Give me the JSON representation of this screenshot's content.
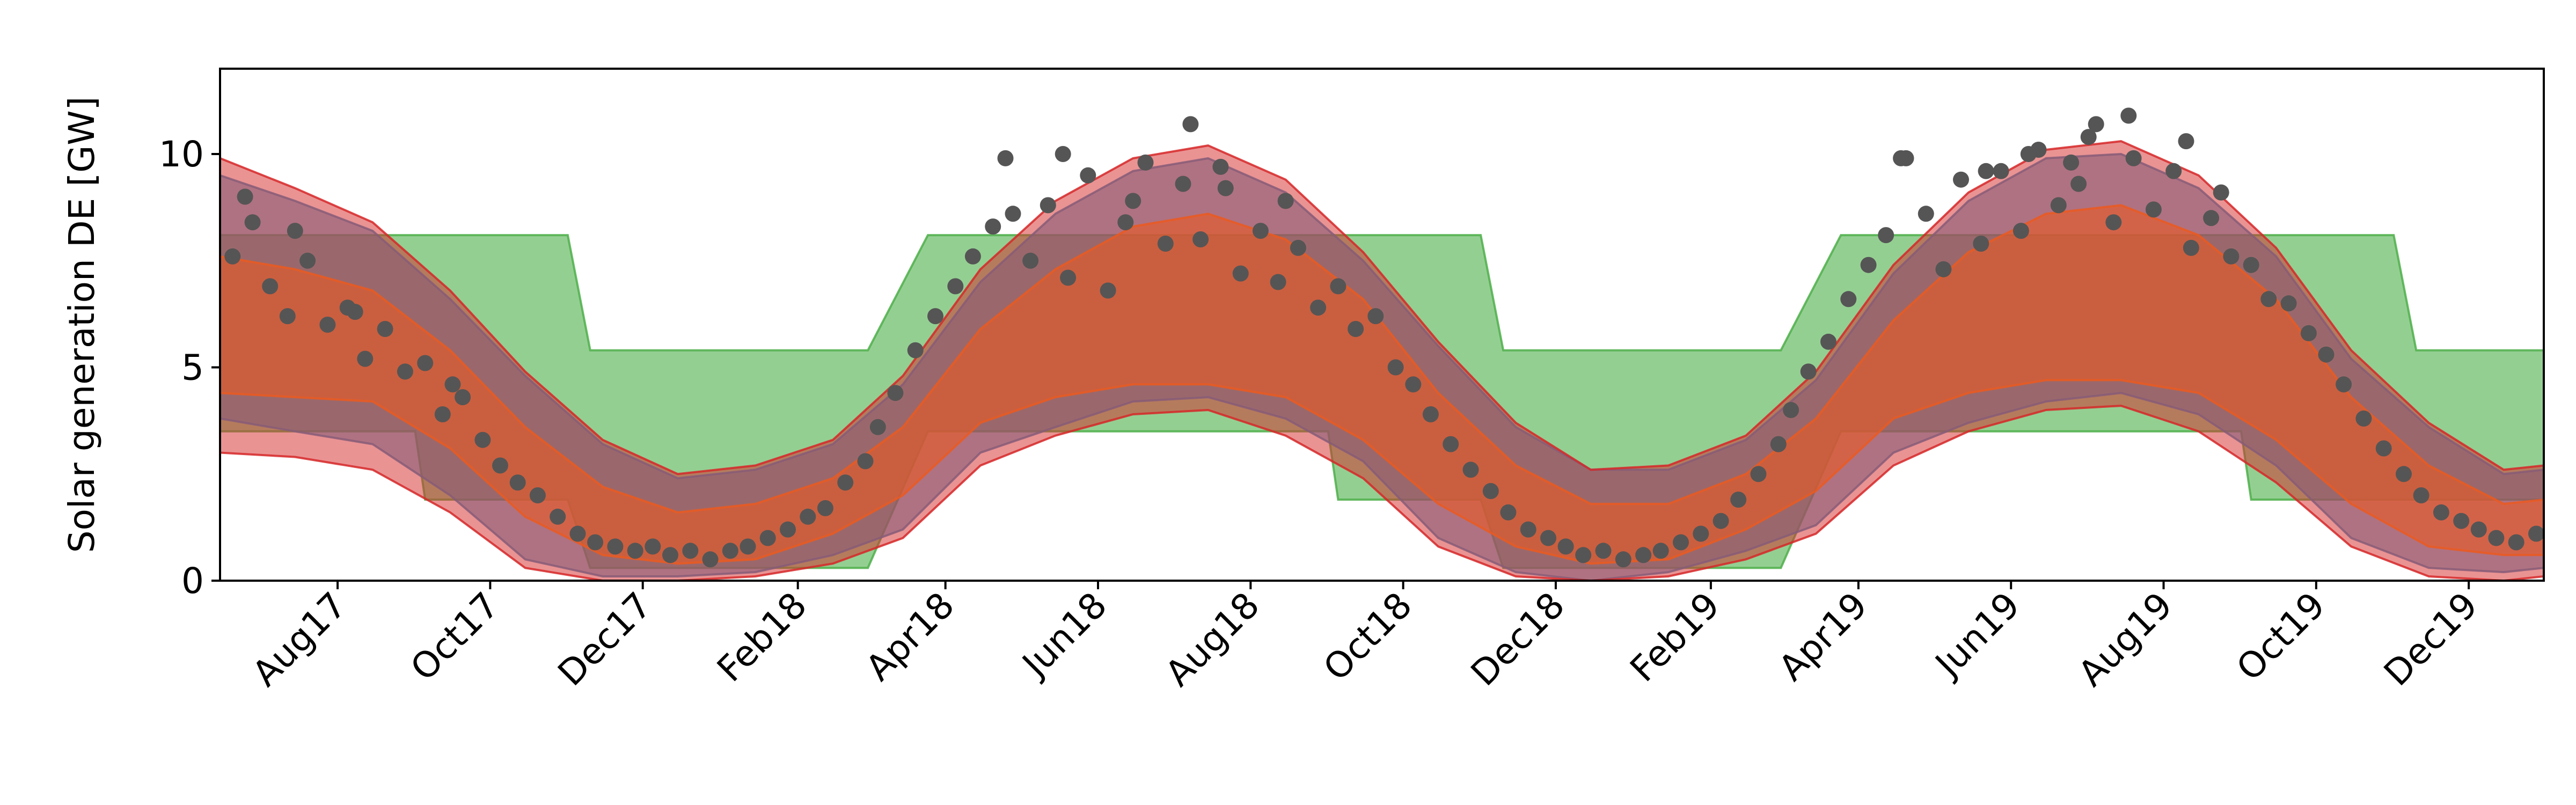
{
  "chart_data": {
    "type": "area",
    "title": "",
    "xlabel": "",
    "ylabel": "Solar generation DE [GW]",
    "xlim": [
      "2017-06-15",
      "2019-12-31"
    ],
    "ylim": [
      0,
      12
    ],
    "yticks": [
      0,
      5,
      10
    ],
    "xtick_labels": [
      {
        "label": "Aug17",
        "date": "2017-08-01"
      },
      {
        "label": "Oct17",
        "date": "2017-10-01"
      },
      {
        "label": "Dec17",
        "date": "2017-12-01"
      },
      {
        "label": "Feb18",
        "date": "2018-02-01"
      },
      {
        "label": "Apr18",
        "date": "2018-04-01"
      },
      {
        "label": "Jun18",
        "date": "2018-06-01"
      },
      {
        "label": "Aug18",
        "date": "2018-08-01"
      },
      {
        "label": "Oct18",
        "date": "2018-10-01"
      },
      {
        "label": "Dec18",
        "date": "2018-12-01"
      },
      {
        "label": "Feb19",
        "date": "2019-02-01"
      },
      {
        "label": "Apr19",
        "date": "2019-04-01"
      },
      {
        "label": "Jun19",
        "date": "2019-06-01"
      },
      {
        "label": "Aug19",
        "date": "2019-08-01"
      },
      {
        "label": "Oct19",
        "date": "2019-10-01"
      },
      {
        "label": "Dec19",
        "date": "2019-12-01"
      }
    ],
    "grid": false,
    "legend": "none",
    "colors": {
      "green_band": "#4daf4a",
      "blue_band": "#3a8fc7",
      "orange_band": "#ff8c1a",
      "red_band": "#d62728",
      "observed_points": "#555555"
    },
    "series": [
      {
        "kind": "band",
        "color_key": "green_band",
        "x": [
          "2017-06-15",
          "2017-07-01",
          "2017-08-01",
          "2017-09-01",
          "2017-09-05",
          "2017-10-01",
          "2017-10-20",
          "2017-11-01",
          "2017-11-10",
          "2017-12-01",
          "2018-01-01",
          "2018-02-01",
          "2018-03-01",
          "2018-03-25",
          "2018-04-01",
          "2018-05-01",
          "2018-06-01",
          "2018-07-01",
          "2018-08-01",
          "2018-09-01",
          "2018-09-05",
          "2018-10-01",
          "2018-10-20",
          "2018-11-01",
          "2018-11-10",
          "2018-12-01",
          "2019-01-01",
          "2019-02-01",
          "2019-03-01",
          "2019-03-25",
          "2019-04-01",
          "2019-05-01",
          "2019-06-01",
          "2019-07-01",
          "2019-08-01",
          "2019-09-01",
          "2019-09-05",
          "2019-10-01",
          "2019-10-20",
          "2019-11-01",
          "2019-11-10",
          "2019-12-01",
          "2019-12-31"
        ],
        "lower": [
          3.5,
          3.5,
          3.5,
          3.5,
          1.9,
          1.9,
          1.9,
          1.9,
          0.3,
          0.3,
          0.3,
          0.3,
          0.3,
          3.5,
          3.5,
          3.5,
          3.5,
          3.5,
          3.5,
          3.5,
          1.9,
          1.9,
          1.9,
          1.9,
          0.3,
          0.3,
          0.3,
          0.3,
          0.3,
          3.5,
          3.5,
          3.5,
          3.5,
          3.5,
          3.5,
          3.5,
          1.9,
          1.9,
          1.9,
          1.9,
          1.9,
          1.9,
          1.9
        ],
        "upper": [
          8.1,
          8.1,
          8.1,
          8.1,
          8.1,
          8.1,
          8.1,
          8.1,
          5.4,
          5.4,
          5.4,
          5.4,
          5.4,
          8.1,
          8.1,
          8.1,
          8.1,
          8.1,
          8.1,
          8.1,
          8.1,
          8.1,
          8.1,
          8.1,
          5.4,
          5.4,
          5.4,
          5.4,
          5.4,
          8.1,
          8.1,
          8.1,
          8.1,
          8.1,
          8.1,
          8.1,
          8.1,
          8.1,
          8.1,
          8.1,
          5.4,
          5.4,
          5.4
        ]
      },
      {
        "kind": "band",
        "color_key": "blue_band",
        "x": [
          "2017-06-15",
          "2017-07-15",
          "2017-08-15",
          "2017-09-15",
          "2017-10-15",
          "2017-11-15",
          "2017-12-15",
          "2018-01-15",
          "2018-02-15",
          "2018-03-15",
          "2018-04-15",
          "2018-05-15",
          "2018-06-15",
          "2018-07-15",
          "2018-08-15",
          "2018-09-15",
          "2018-10-15",
          "2018-11-15",
          "2018-12-15",
          "2019-01-15",
          "2019-02-15",
          "2019-03-15",
          "2019-04-15",
          "2019-05-15",
          "2019-06-15",
          "2019-07-15",
          "2019-08-15",
          "2019-09-15",
          "2019-10-15",
          "2019-11-15",
          "2019-12-15",
          "2019-12-31"
        ],
        "lower": [
          3.8,
          3.5,
          3.2,
          2.0,
          0.5,
          0.1,
          0.1,
          0.2,
          0.6,
          1.2,
          3.0,
          3.6,
          4.2,
          4.3,
          3.8,
          2.8,
          1.0,
          0.2,
          0.0,
          0.2,
          0.7,
          1.3,
          3.0,
          3.7,
          4.2,
          4.4,
          3.9,
          2.7,
          1.0,
          0.3,
          0.2,
          0.3
        ],
        "upper": [
          9.5,
          8.9,
          8.2,
          6.6,
          4.8,
          3.2,
          2.4,
          2.6,
          3.2,
          4.6,
          7.0,
          8.6,
          9.6,
          9.9,
          9.1,
          7.5,
          5.5,
          3.6,
          2.6,
          2.6,
          3.3,
          4.7,
          7.2,
          8.9,
          9.9,
          10.0,
          9.2,
          7.6,
          5.2,
          3.6,
          2.5,
          2.6
        ]
      },
      {
        "kind": "band",
        "color_key": "orange_band",
        "x": [
          "2017-06-15",
          "2017-07-15",
          "2017-08-15",
          "2017-09-15",
          "2017-10-15",
          "2017-11-15",
          "2017-12-15",
          "2018-01-15",
          "2018-02-15",
          "2018-03-15",
          "2018-04-15",
          "2018-05-15",
          "2018-06-15",
          "2018-07-15",
          "2018-08-15",
          "2018-09-15",
          "2018-10-15",
          "2018-11-15",
          "2018-12-15",
          "2019-01-15",
          "2019-02-15",
          "2019-03-15",
          "2019-04-15",
          "2019-05-15",
          "2019-06-15",
          "2019-07-15",
          "2019-08-15",
          "2019-09-15",
          "2019-10-15",
          "2019-11-15",
          "2019-12-15",
          "2019-12-31"
        ],
        "lower": [
          4.4,
          4.3,
          4.2,
          3.1,
          1.5,
          0.6,
          0.4,
          0.5,
          1.1,
          2.0,
          3.7,
          4.3,
          4.6,
          4.6,
          4.3,
          3.3,
          1.8,
          0.8,
          0.4,
          0.5,
          1.2,
          2.1,
          3.8,
          4.4,
          4.7,
          4.7,
          4.4,
          3.3,
          1.8,
          0.8,
          0.6,
          0.6
        ],
        "upper": [
          7.6,
          7.3,
          6.8,
          5.4,
          3.6,
          2.2,
          1.6,
          1.8,
          2.4,
          3.6,
          5.9,
          7.3,
          8.3,
          8.6,
          8.0,
          6.6,
          4.4,
          2.7,
          1.8,
          1.8,
          2.5,
          3.8,
          6.1,
          7.7,
          8.6,
          8.8,
          8.1,
          6.6,
          4.3,
          2.7,
          1.8,
          1.9
        ]
      },
      {
        "kind": "band",
        "color_key": "red_band",
        "x": [
          "2017-06-15",
          "2017-07-15",
          "2017-08-15",
          "2017-09-15",
          "2017-10-15",
          "2017-11-15",
          "2017-12-15",
          "2018-01-15",
          "2018-02-15",
          "2018-03-15",
          "2018-04-15",
          "2018-05-15",
          "2018-06-15",
          "2018-07-15",
          "2018-08-15",
          "2018-09-15",
          "2018-10-15",
          "2018-11-15",
          "2018-12-15",
          "2019-01-15",
          "2019-02-15",
          "2019-03-15",
          "2019-04-15",
          "2019-05-15",
          "2019-06-15",
          "2019-07-15",
          "2019-08-15",
          "2019-09-15",
          "2019-10-15",
          "2019-11-15",
          "2019-12-15",
          "2019-12-31"
        ],
        "lower": [
          3.0,
          2.9,
          2.6,
          1.6,
          0.3,
          0.0,
          0.0,
          0.1,
          0.4,
          1.0,
          2.7,
          3.4,
          3.9,
          4.0,
          3.4,
          2.4,
          0.8,
          0.1,
          0.0,
          0.1,
          0.5,
          1.1,
          2.7,
          3.5,
          4.0,
          4.1,
          3.5,
          2.3,
          0.8,
          0.1,
          0.0,
          0.1
        ],
        "upper": [
          9.9,
          9.2,
          8.4,
          6.8,
          4.9,
          3.3,
          2.5,
          2.7,
          3.3,
          4.8,
          7.3,
          8.9,
          9.9,
          10.2,
          9.4,
          7.7,
          5.6,
          3.7,
          2.6,
          2.7,
          3.4,
          4.9,
          7.4,
          9.1,
          10.1,
          10.3,
          9.5,
          7.8,
          5.4,
          3.7,
          2.6,
          2.7
        ]
      },
      {
        "kind": "scatter",
        "color_key": "observed_points",
        "x": [
          "2017-06-20",
          "2017-06-28",
          "2017-07-05",
          "2017-07-12",
          "2017-07-20",
          "2017-07-28",
          "2017-08-05",
          "2017-08-12",
          "2017-08-20",
          "2017-08-28",
          "2017-09-05",
          "2017-09-12",
          "2017-09-20",
          "2017-09-28",
          "2017-10-05",
          "2017-10-12",
          "2017-10-20",
          "2017-10-28",
          "2017-11-05",
          "2017-11-12",
          "2017-11-20",
          "2017-11-28",
          "2017-12-05",
          "2017-12-12",
          "2017-12-20",
          "2017-12-28",
          "2018-01-05",
          "2018-01-12",
          "2018-01-20",
          "2018-01-28",
          "2018-02-05",
          "2018-02-12",
          "2018-02-20",
          "2018-02-28",
          "2018-03-05",
          "2018-03-12",
          "2018-03-20",
          "2018-03-28",
          "2018-04-05",
          "2018-04-12",
          "2018-04-20",
          "2018-04-28",
          "2018-05-05",
          "2018-05-12",
          "2018-05-20",
          "2018-05-28",
          "2018-06-05",
          "2018-06-12",
          "2018-06-20",
          "2018-06-28",
          "2018-07-05",
          "2018-07-12",
          "2018-07-20",
          "2018-07-28",
          "2018-08-05",
          "2018-08-12",
          "2018-08-20",
          "2018-08-28",
          "2018-09-05",
          "2018-09-12",
          "2018-09-20",
          "2018-09-28",
          "2018-10-05",
          "2018-10-12",
          "2018-10-20",
          "2018-10-28",
          "2018-11-05",
          "2018-11-12",
          "2018-11-20",
          "2018-11-28",
          "2018-12-05",
          "2018-12-12",
          "2018-12-20",
          "2018-12-28",
          "2019-01-05",
          "2019-01-12",
          "2019-01-20",
          "2019-01-28",
          "2019-02-05",
          "2019-02-12",
          "2019-02-20",
          "2019-02-28",
          "2019-03-05",
          "2019-03-12",
          "2019-03-20",
          "2019-03-28",
          "2019-04-05",
          "2019-04-12",
          "2019-04-20",
          "2019-04-28",
          "2019-05-05",
          "2019-05-12",
          "2019-05-20",
          "2019-05-28",
          "2019-06-05",
          "2019-06-12",
          "2019-06-20",
          "2019-06-28",
          "2019-07-05",
          "2019-07-12",
          "2019-07-20",
          "2019-07-28",
          "2019-08-05",
          "2019-08-12",
          "2019-08-20",
          "2019-08-28",
          "2019-09-05",
          "2019-09-12",
          "2019-09-20",
          "2019-09-28",
          "2019-10-05",
          "2019-10-12",
          "2019-10-20",
          "2019-10-28",
          "2019-11-05",
          "2019-11-12",
          "2019-11-20",
          "2019-11-28",
          "2019-12-05",
          "2019-12-12",
          "2019-12-20",
          "2019-12-28",
          "2017-06-25",
          "2017-07-15",
          "2017-08-08",
          "2017-09-16",
          "2018-04-25",
          "2018-05-18",
          "2018-06-15",
          "2018-07-08",
          "2018-07-22",
          "2018-08-15",
          "2019-04-18",
          "2019-05-22",
          "2019-06-08",
          "2019-06-25",
          "2019-07-02",
          "2019-07-18",
          "2019-08-10",
          "2019-08-24"
        ],
        "y": [
          7.6,
          8.4,
          6.9,
          6.2,
          7.5,
          6.0,
          6.4,
          5.2,
          5.9,
          4.9,
          5.1,
          3.9,
          4.3,
          3.3,
          2.7,
          2.3,
          2.0,
          1.5,
          1.1,
          0.9,
          0.8,
          0.7,
          0.8,
          0.6,
          0.7,
          0.5,
          0.7,
          0.8,
          1.0,
          1.2,
          1.5,
          1.7,
          2.3,
          2.8,
          3.6,
          4.4,
          5.4,
          6.2,
          6.9,
          7.6,
          8.3,
          8.6,
          7.5,
          8.8,
          7.1,
          9.5,
          6.8,
          8.4,
          9.8,
          7.9,
          9.3,
          8.0,
          9.7,
          7.2,
          8.2,
          7.0,
          7.8,
          6.4,
          6.9,
          5.9,
          6.2,
          5.0,
          4.6,
          3.9,
          3.2,
          2.6,
          2.1,
          1.6,
          1.2,
          1.0,
          0.8,
          0.6,
          0.7,
          0.5,
          0.6,
          0.7,
          0.9,
          1.1,
          1.4,
          1.9,
          2.5,
          3.2,
          4.0,
          4.9,
          5.6,
          6.6,
          7.4,
          8.1,
          9.9,
          8.6,
          7.3,
          9.4,
          7.9,
          9.6,
          8.2,
          10.1,
          8.8,
          9.3,
          10.7,
          8.4,
          9.9,
          8.7,
          9.6,
          7.8,
          8.5,
          7.6,
          7.4,
          6.6,
          6.5,
          5.8,
          5.3,
          4.6,
          3.8,
          3.1,
          2.5,
          2.0,
          1.6,
          1.4,
          1.2,
          1.0,
          0.9,
          1.1,
          9.0,
          8.2,
          6.3,
          4.6,
          9.9,
          10.0,
          8.9,
          10.7,
          9.2,
          8.9,
          9.9,
          9.6,
          10.0,
          9.8,
          10.4,
          10.9,
          10.3,
          9.1
        ]
      }
    ]
  }
}
